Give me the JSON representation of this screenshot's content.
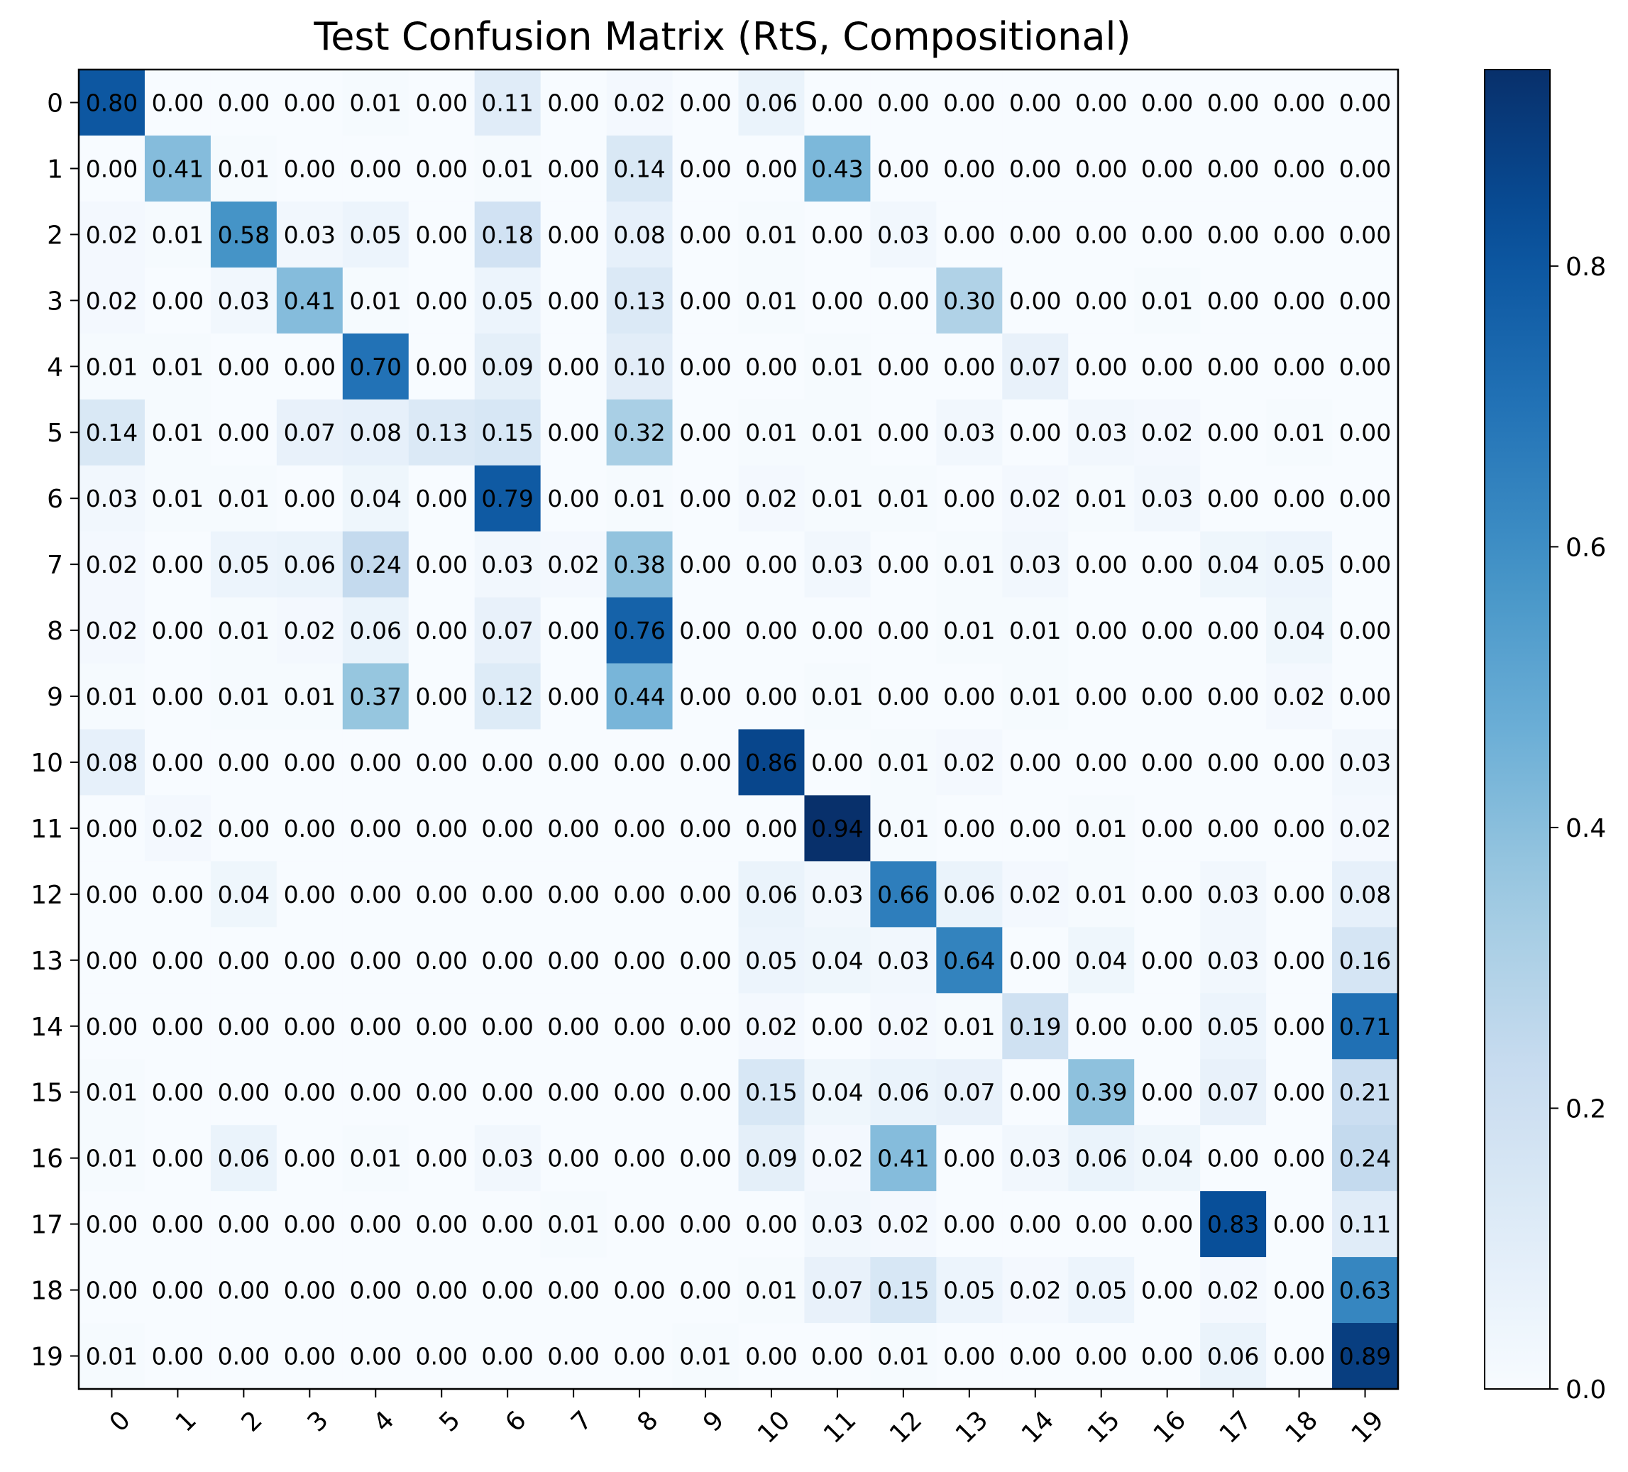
{
  "chart_data": {
    "type": "heatmap",
    "title": "Test Confusion Matrix (RtS, Compositional)",
    "xlabel": "",
    "ylabel": "",
    "x_categories": [
      "0",
      "1",
      "2",
      "3",
      "4",
      "5",
      "6",
      "7",
      "8",
      "9",
      "10",
      "11",
      "12",
      "13",
      "14",
      "15",
      "16",
      "17",
      "18",
      "19"
    ],
    "y_categories": [
      "0",
      "1",
      "2",
      "3",
      "4",
      "5",
      "6",
      "7",
      "8",
      "9",
      "10",
      "11",
      "12",
      "13",
      "14",
      "15",
      "16",
      "17",
      "18",
      "19"
    ],
    "values": [
      [
        0.8,
        0.0,
        0.0,
        0.0,
        0.01,
        0.0,
        0.11,
        0.0,
        0.02,
        0.0,
        0.06,
        0.0,
        0.0,
        0.0,
        0.0,
        0.0,
        0.0,
        0.0,
        0.0,
        0.0
      ],
      [
        0.0,
        0.41,
        0.01,
        0.0,
        0.0,
        0.0,
        0.01,
        0.0,
        0.14,
        0.0,
        0.0,
        0.43,
        0.0,
        0.0,
        0.0,
        0.0,
        0.0,
        0.0,
        0.0,
        0.0
      ],
      [
        0.02,
        0.01,
        0.58,
        0.03,
        0.05,
        0.0,
        0.18,
        0.0,
        0.08,
        0.0,
        0.01,
        0.0,
        0.03,
        0.0,
        0.0,
        0.0,
        0.0,
        0.0,
        0.0,
        0.0
      ],
      [
        0.02,
        0.0,
        0.03,
        0.41,
        0.01,
        0.0,
        0.05,
        0.0,
        0.13,
        0.0,
        0.01,
        0.0,
        0.0,
        0.3,
        0.0,
        0.0,
        0.01,
        0.0,
        0.0,
        0.0
      ],
      [
        0.01,
        0.01,
        0.0,
        0.0,
        0.7,
        0.0,
        0.09,
        0.0,
        0.1,
        0.0,
        0.0,
        0.01,
        0.0,
        0.0,
        0.07,
        0.0,
        0.0,
        0.0,
        0.0,
        0.0
      ],
      [
        0.14,
        0.01,
        0.0,
        0.07,
        0.08,
        0.13,
        0.15,
        0.0,
        0.32,
        0.0,
        0.01,
        0.01,
        0.0,
        0.03,
        0.0,
        0.03,
        0.02,
        0.0,
        0.01,
        0.0
      ],
      [
        0.03,
        0.01,
        0.01,
        0.0,
        0.04,
        0.0,
        0.79,
        0.0,
        0.01,
        0.0,
        0.02,
        0.01,
        0.01,
        0.0,
        0.02,
        0.01,
        0.03,
        0.0,
        0.0,
        0.0
      ],
      [
        0.02,
        0.0,
        0.05,
        0.06,
        0.24,
        0.0,
        0.03,
        0.02,
        0.38,
        0.0,
        0.0,
        0.03,
        0.0,
        0.01,
        0.03,
        0.0,
        0.0,
        0.04,
        0.05,
        0.0
      ],
      [
        0.02,
        0.0,
        0.01,
        0.02,
        0.06,
        0.0,
        0.07,
        0.0,
        0.76,
        0.0,
        0.0,
        0.0,
        0.0,
        0.01,
        0.01,
        0.0,
        0.0,
        0.0,
        0.04,
        0.0
      ],
      [
        0.01,
        0.0,
        0.01,
        0.01,
        0.37,
        0.0,
        0.12,
        0.0,
        0.44,
        0.0,
        0.0,
        0.01,
        0.0,
        0.0,
        0.01,
        0.0,
        0.0,
        0.0,
        0.02,
        0.0
      ],
      [
        0.08,
        0.0,
        0.0,
        0.0,
        0.0,
        0.0,
        0.0,
        0.0,
        0.0,
        0.0,
        0.86,
        0.0,
        0.01,
        0.02,
        0.0,
        0.0,
        0.0,
        0.0,
        0.0,
        0.03
      ],
      [
        0.0,
        0.02,
        0.0,
        0.0,
        0.0,
        0.0,
        0.0,
        0.0,
        0.0,
        0.0,
        0.0,
        0.94,
        0.01,
        0.0,
        0.0,
        0.01,
        0.0,
        0.0,
        0.0,
        0.02
      ],
      [
        0.0,
        0.0,
        0.04,
        0.0,
        0.0,
        0.0,
        0.0,
        0.0,
        0.0,
        0.0,
        0.06,
        0.03,
        0.66,
        0.06,
        0.02,
        0.01,
        0.0,
        0.03,
        0.0,
        0.08
      ],
      [
        0.0,
        0.0,
        0.0,
        0.0,
        0.0,
        0.0,
        0.0,
        0.0,
        0.0,
        0.0,
        0.05,
        0.04,
        0.03,
        0.64,
        0.0,
        0.04,
        0.0,
        0.03,
        0.0,
        0.16
      ],
      [
        0.0,
        0.0,
        0.0,
        0.0,
        0.0,
        0.0,
        0.0,
        0.0,
        0.0,
        0.0,
        0.02,
        0.0,
        0.02,
        0.01,
        0.19,
        0.0,
        0.0,
        0.05,
        0.0,
        0.71
      ],
      [
        0.01,
        0.0,
        0.0,
        0.0,
        0.0,
        0.0,
        0.0,
        0.0,
        0.0,
        0.0,
        0.15,
        0.04,
        0.06,
        0.07,
        0.0,
        0.39,
        0.0,
        0.07,
        0.0,
        0.21
      ],
      [
        0.01,
        0.0,
        0.06,
        0.0,
        0.01,
        0.0,
        0.03,
        0.0,
        0.0,
        0.0,
        0.09,
        0.02,
        0.41,
        0.0,
        0.03,
        0.06,
        0.04,
        0.0,
        0.0,
        0.24
      ],
      [
        0.0,
        0.0,
        0.0,
        0.0,
        0.0,
        0.0,
        0.0,
        0.01,
        0.0,
        0.0,
        0.0,
        0.03,
        0.02,
        0.0,
        0.0,
        0.0,
        0.0,
        0.83,
        0.0,
        0.11
      ],
      [
        0.0,
        0.0,
        0.0,
        0.0,
        0.0,
        0.0,
        0.0,
        0.0,
        0.0,
        0.0,
        0.01,
        0.07,
        0.15,
        0.05,
        0.02,
        0.05,
        0.0,
        0.02,
        0.0,
        0.63
      ],
      [
        0.01,
        0.0,
        0.0,
        0.0,
        0.0,
        0.0,
        0.0,
        0.0,
        0.0,
        0.01,
        0.0,
        0.0,
        0.01,
        0.0,
        0.0,
        0.0,
        0.0,
        0.06,
        0.0,
        0.89
      ]
    ],
    "value_format": "0.00",
    "colormap": "Blues",
    "vmin": 0.0,
    "vmax": 0.94,
    "colorbar_ticks": [
      "0.0",
      "0.2",
      "0.4",
      "0.6",
      "0.8"
    ],
    "grid": false
  }
}
